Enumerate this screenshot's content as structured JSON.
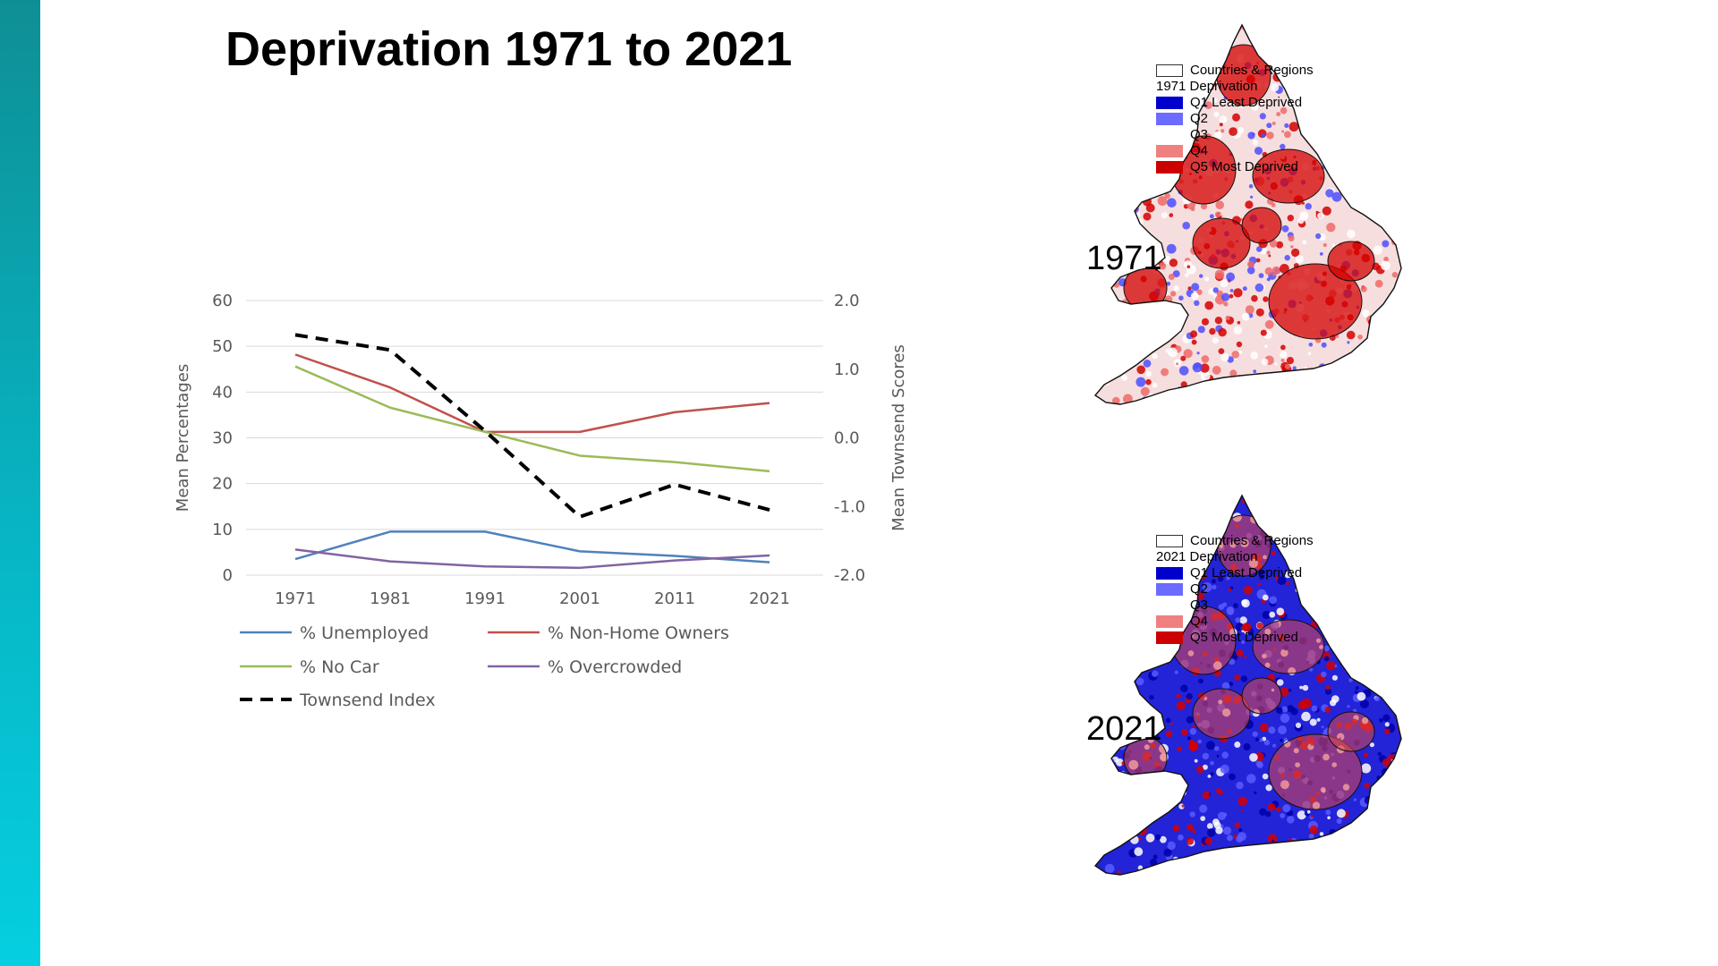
{
  "slide": {
    "title": "Deprivation 1971 to 2021",
    "sidebar_color": "#07b5c4"
  },
  "chart_data": {
    "type": "line",
    "categories": [
      "1971",
      "1981",
      "1991",
      "2001",
      "2011",
      "2021"
    ],
    "left_axis": {
      "label": "Mean Percentages",
      "range": [
        0,
        60
      ],
      "ticks": [
        "0",
        "10",
        "20",
        "30",
        "40",
        "50",
        "60"
      ]
    },
    "right_axis": {
      "label": "Mean Townsend Scores",
      "range": [
        -2.0,
        2.0
      ],
      "ticks": [
        "-2.0",
        "-1.0",
        "0.0",
        "1.0",
        "2.0"
      ]
    },
    "grid": true,
    "legend_position": "bottom",
    "series": [
      {
        "name": "% Unemployed",
        "axis": "left",
        "color": "#4f81bd",
        "dash": false,
        "values": [
          3.5,
          9.5,
          9.5,
          5.2,
          4.2,
          2.8
        ]
      },
      {
        "name": "% Non-Home Owners",
        "axis": "left",
        "color": "#c0504d",
        "dash": false,
        "values": [
          48.2,
          41,
          31.3,
          31.3,
          35.6,
          37.6
        ]
      },
      {
        "name": "% No Car",
        "axis": "left",
        "color": "#9bbb59",
        "dash": false,
        "values": [
          45.6,
          36.6,
          31.3,
          26.1,
          24.7,
          22.7
        ]
      },
      {
        "name": "% Overcrowded",
        "axis": "left",
        "color": "#8064a2",
        "dash": false,
        "values": [
          5.6,
          3,
          1.9,
          1.6,
          3.2,
          4.3
        ]
      },
      {
        "name": "Townsend Index",
        "axis": "right",
        "color": "#000000",
        "dash": true,
        "values": [
          1.5,
          1.28,
          0.1,
          -1.15,
          -0.68,
          -1.05
        ]
      }
    ]
  },
  "maps": [
    {
      "year": "1971",
      "legend": {
        "boundary": "Countries & Regions",
        "heading": "1971 Deprivation",
        "items": [
          {
            "label": "Q1 Least Deprived",
            "color": "#0000cc"
          },
          {
            "label": "Q2",
            "color": "#6b6bff"
          },
          {
            "label": "Q3",
            "color": "#ffffff"
          },
          {
            "label": "Q4",
            "color": "#f08080"
          },
          {
            "label": "Q5 Most Deprived",
            "color": "#cc0000"
          }
        ]
      },
      "palette": {
        "base": "#f6dede",
        "accents": [
          "#ee6a6a",
          "#d40000",
          "#4d4dff",
          "#ffffff"
        ]
      }
    },
    {
      "year": "2021",
      "legend": {
        "boundary": "Countries & Regions",
        "heading": "2021 Deprivation",
        "items": [
          {
            "label": "Q1 Least Deprived",
            "color": "#0000cc"
          },
          {
            "label": "Q2",
            "color": "#6b6bff"
          },
          {
            "label": "Q3",
            "color": "#ffffff"
          },
          {
            "label": "Q4",
            "color": "#f08080"
          },
          {
            "label": "Q5 Most Deprived",
            "color": "#cc0000"
          }
        ]
      },
      "palette": {
        "base": "#2323d8",
        "accents": [
          "#0000a8",
          "#5a5aff",
          "#d40000",
          "#ffffff"
        ]
      }
    }
  ]
}
